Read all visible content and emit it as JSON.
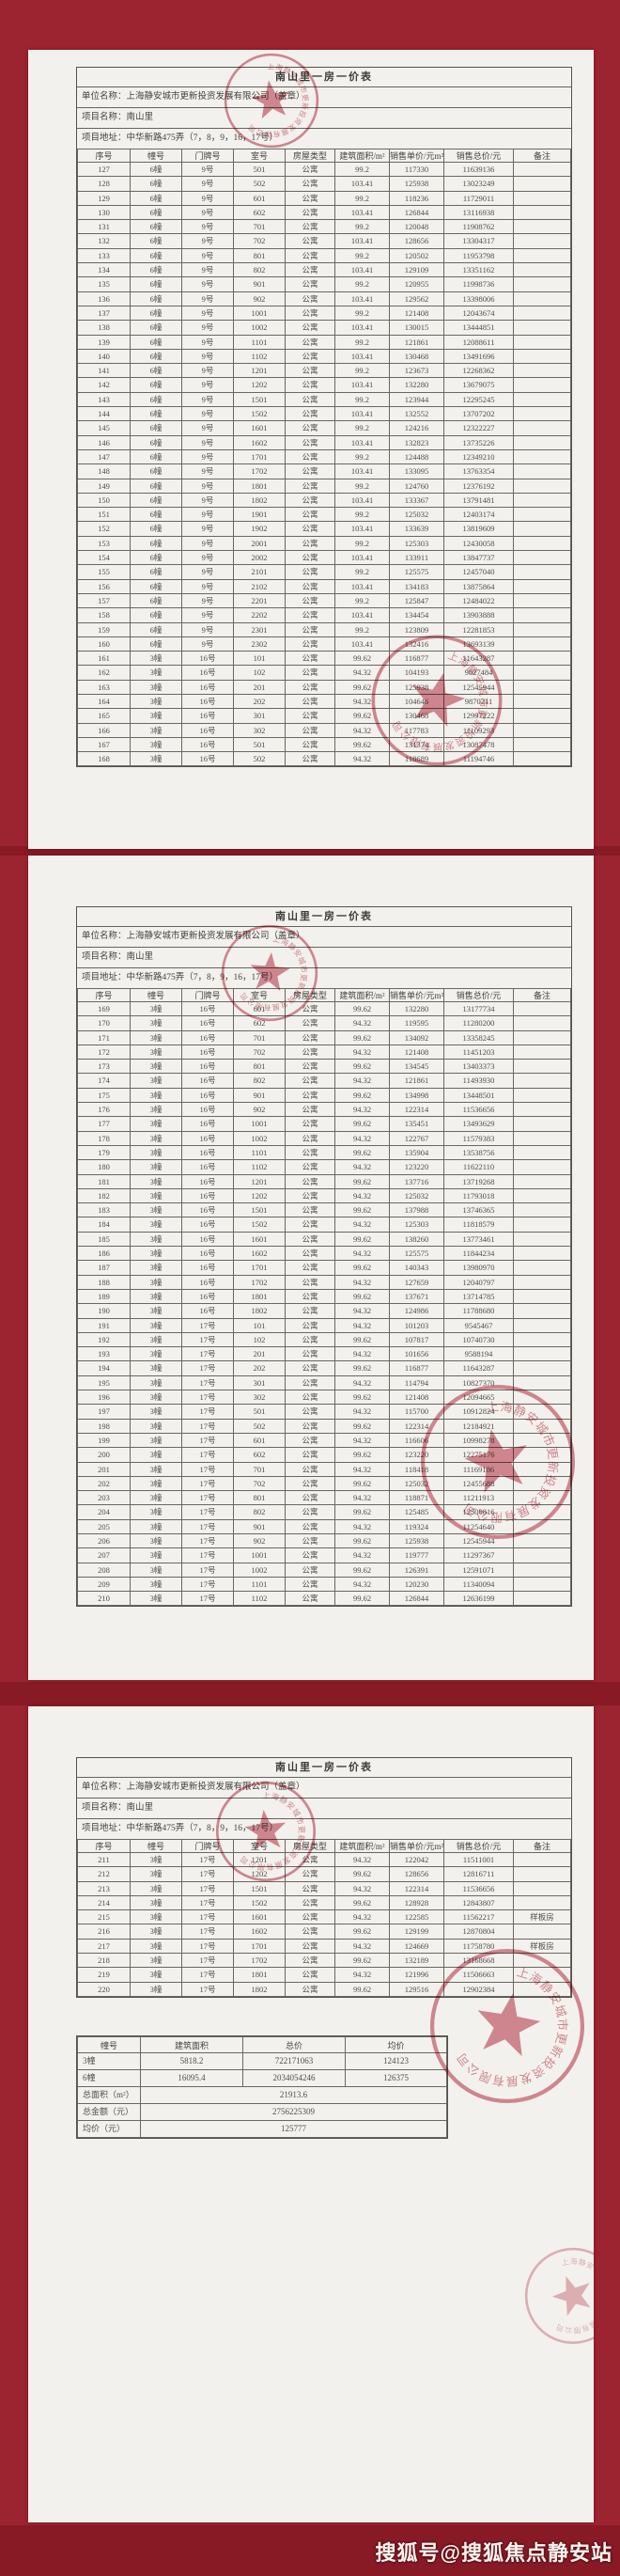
{
  "doc": {
    "title": "南山里一房一价表",
    "unit": "单位名称：上海静安城市更新投资发展有限公司（盖章）",
    "project": "项目名称：南山里",
    "address": "项目地址：中华新路475弄（7，8，9，16，17号）",
    "columns": [
      "序号",
      "幢号",
      "门牌号",
      "室号",
      "房屋类型",
      "建筑面积/m²",
      "销售单价/元m²",
      "销售总价/元",
      "备注"
    ]
  },
  "seal_text": "上海静安城市更新投资发展有限公司",
  "watermark": "搜狐号@搜狐焦点静安站",
  "colors": {
    "background": "#9c2430",
    "band": "#871a25",
    "paper": "#f3f1ed",
    "stamp_red": "#ba3046"
  },
  "pages": [
    {
      "rows": [
        [
          "127",
          "6幢",
          "9号",
          "501",
          "公寓",
          "99.2",
          "117330",
          "11639136",
          ""
        ],
        [
          "128",
          "6幢",
          "9号",
          "502",
          "公寓",
          "103.41",
          "125938",
          "13023249",
          ""
        ],
        [
          "129",
          "6幢",
          "9号",
          "601",
          "公寓",
          "99.2",
          "118236",
          "11729011",
          ""
        ],
        [
          "130",
          "6幢",
          "9号",
          "602",
          "公寓",
          "103.41",
          "126844",
          "13116938",
          ""
        ],
        [
          "131",
          "6幢",
          "9号",
          "701",
          "公寓",
          "99.2",
          "120048",
          "11908762",
          ""
        ],
        [
          "132",
          "6幢",
          "9号",
          "702",
          "公寓",
          "103.41",
          "128656",
          "13304317",
          ""
        ],
        [
          "133",
          "6幢",
          "9号",
          "801",
          "公寓",
          "99.2",
          "120502",
          "11953798",
          ""
        ],
        [
          "134",
          "6幢",
          "9号",
          "802",
          "公寓",
          "103.41",
          "129109",
          "13351162",
          ""
        ],
        [
          "135",
          "6幢",
          "9号",
          "901",
          "公寓",
          "99.2",
          "120955",
          "11998736",
          ""
        ],
        [
          "136",
          "6幢",
          "9号",
          "902",
          "公寓",
          "103.41",
          "129562",
          "13398006",
          ""
        ],
        [
          "137",
          "6幢",
          "9号",
          "1001",
          "公寓",
          "99.2",
          "121408",
          "12043674",
          ""
        ],
        [
          "138",
          "6幢",
          "9号",
          "1002",
          "公寓",
          "103.41",
          "130015",
          "13444851",
          ""
        ],
        [
          "139",
          "6幢",
          "9号",
          "1101",
          "公寓",
          "99.2",
          "121861",
          "12088611",
          ""
        ],
        [
          "140",
          "6幢",
          "9号",
          "1102",
          "公寓",
          "103.41",
          "130468",
          "13491696",
          ""
        ],
        [
          "141",
          "6幢",
          "9号",
          "1201",
          "公寓",
          "99.2",
          "123673",
          "12268362",
          ""
        ],
        [
          "142",
          "6幢",
          "9号",
          "1202",
          "公寓",
          "103.41",
          "132280",
          "13679075",
          ""
        ],
        [
          "143",
          "6幢",
          "9号",
          "1501",
          "公寓",
          "99.2",
          "123944",
          "12295245",
          ""
        ],
        [
          "144",
          "6幢",
          "9号",
          "1502",
          "公寓",
          "103.41",
          "132552",
          "13707202",
          ""
        ],
        [
          "145",
          "6幢",
          "9号",
          "1601",
          "公寓",
          "99.2",
          "124216",
          "12322227",
          ""
        ],
        [
          "146",
          "6幢",
          "9号",
          "1602",
          "公寓",
          "103.41",
          "132823",
          "13735226",
          ""
        ],
        [
          "147",
          "6幢",
          "9号",
          "1701",
          "公寓",
          "99.2",
          "124488",
          "12349210",
          ""
        ],
        [
          "148",
          "6幢",
          "9号",
          "1702",
          "公寓",
          "103.41",
          "133095",
          "13763354",
          ""
        ],
        [
          "149",
          "6幢",
          "9号",
          "1801",
          "公寓",
          "99.2",
          "124760",
          "12376192",
          ""
        ],
        [
          "150",
          "6幢",
          "9号",
          "1802",
          "公寓",
          "103.41",
          "133367",
          "13791481",
          ""
        ],
        [
          "151",
          "6幢",
          "9号",
          "1901",
          "公寓",
          "99.2",
          "125032",
          "12403174",
          ""
        ],
        [
          "152",
          "6幢",
          "9号",
          "1902",
          "公寓",
          "103.41",
          "133639",
          "13819609",
          ""
        ],
        [
          "153",
          "6幢",
          "9号",
          "2001",
          "公寓",
          "99.2",
          "125303",
          "12430058",
          ""
        ],
        [
          "154",
          "6幢",
          "9号",
          "2002",
          "公寓",
          "103.41",
          "133911",
          "13847737",
          ""
        ],
        [
          "155",
          "6幢",
          "9号",
          "2101",
          "公寓",
          "99.2",
          "125575",
          "12457040",
          ""
        ],
        [
          "156",
          "6幢",
          "9号",
          "2102",
          "公寓",
          "103.41",
          "134183",
          "13875864",
          ""
        ],
        [
          "157",
          "6幢",
          "9号",
          "2201",
          "公寓",
          "99.2",
          "125847",
          "12484022",
          ""
        ],
        [
          "158",
          "6幢",
          "9号",
          "2202",
          "公寓",
          "103.41",
          "134454",
          "13903888",
          ""
        ],
        [
          "159",
          "6幢",
          "9号",
          "2301",
          "公寓",
          "99.2",
          "123809",
          "12281853",
          ""
        ],
        [
          "160",
          "6幢",
          "9号",
          "2302",
          "公寓",
          "103.41",
          "132416",
          "13693139",
          ""
        ],
        [
          "161",
          "3幢",
          "16号",
          "101",
          "公寓",
          "99.62",
          "116877",
          "11643287",
          ""
        ],
        [
          "162",
          "3幢",
          "16号",
          "102",
          "公寓",
          "94.32",
          "104193",
          "9827484",
          ""
        ],
        [
          "163",
          "3幢",
          "16号",
          "201",
          "公寓",
          "99.62",
          "125938",
          "12545944",
          ""
        ],
        [
          "164",
          "3幢",
          "16号",
          "202",
          "公寓",
          "94.32",
          "104646",
          "9870211",
          ""
        ],
        [
          "165",
          "3幢",
          "16号",
          "301",
          "公寓",
          "99.62",
          "130468",
          "12997222",
          ""
        ],
        [
          "166",
          "3幢",
          "16号",
          "302",
          "公寓",
          "94.32",
          "117783",
          "11109293",
          ""
        ],
        [
          "167",
          "3幢",
          "16号",
          "501",
          "公寓",
          "99.62",
          "131374",
          "13087478",
          ""
        ],
        [
          "168",
          "3幢",
          "16号",
          "502",
          "公寓",
          "94.32",
          "118689",
          "11194746",
          ""
        ]
      ]
    },
    {
      "rows": [
        [
          "169",
          "3幢",
          "16号",
          "601",
          "公寓",
          "99.62",
          "132280",
          "13177734",
          ""
        ],
        [
          "170",
          "3幢",
          "16号",
          "602",
          "公寓",
          "94.32",
          "119595",
          "11280200",
          ""
        ],
        [
          "171",
          "3幢",
          "16号",
          "701",
          "公寓",
          "99.62",
          "134092",
          "13358245",
          ""
        ],
        [
          "172",
          "3幢",
          "16号",
          "702",
          "公寓",
          "94.32",
          "121408",
          "11451203",
          ""
        ],
        [
          "173",
          "3幢",
          "16号",
          "801",
          "公寓",
          "99.62",
          "134545",
          "13403373",
          ""
        ],
        [
          "174",
          "3幢",
          "16号",
          "802",
          "公寓",
          "94.32",
          "121861",
          "11493930",
          ""
        ],
        [
          "175",
          "3幢",
          "16号",
          "901",
          "公寓",
          "99.62",
          "134998",
          "13448501",
          ""
        ],
        [
          "176",
          "3幢",
          "16号",
          "902",
          "公寓",
          "94.32",
          "122314",
          "11536656",
          ""
        ],
        [
          "177",
          "3幢",
          "16号",
          "1001",
          "公寓",
          "99.62",
          "135451",
          "13493629",
          ""
        ],
        [
          "178",
          "3幢",
          "16号",
          "1002",
          "公寓",
          "94.32",
          "122767",
          "11579383",
          ""
        ],
        [
          "179",
          "3幢",
          "16号",
          "1101",
          "公寓",
          "99.62",
          "135904",
          "13538756",
          ""
        ],
        [
          "180",
          "3幢",
          "16号",
          "1102",
          "公寓",
          "94.32",
          "123220",
          "11622110",
          ""
        ],
        [
          "181",
          "3幢",
          "16号",
          "1201",
          "公寓",
          "99.62",
          "137716",
          "13719268",
          ""
        ],
        [
          "182",
          "3幢",
          "16号",
          "1202",
          "公寓",
          "94.32",
          "125032",
          "11793018",
          ""
        ],
        [
          "183",
          "3幢",
          "16号",
          "1501",
          "公寓",
          "99.62",
          "137988",
          "13746365",
          ""
        ],
        [
          "184",
          "3幢",
          "16号",
          "1502",
          "公寓",
          "94.32",
          "125303",
          "11818579",
          ""
        ],
        [
          "185",
          "3幢",
          "16号",
          "1601",
          "公寓",
          "99.62",
          "138260",
          "13773461",
          ""
        ],
        [
          "186",
          "3幢",
          "16号",
          "1602",
          "公寓",
          "94.32",
          "125575",
          "11844234",
          ""
        ],
        [
          "187",
          "3幢",
          "16号",
          "1701",
          "公寓",
          "99.62",
          "140343",
          "13980970",
          ""
        ],
        [
          "188",
          "3幢",
          "16号",
          "1702",
          "公寓",
          "94.32",
          "127659",
          "12040797",
          ""
        ],
        [
          "189",
          "3幢",
          "16号",
          "1801",
          "公寓",
          "99.62",
          "137671",
          "13714785",
          ""
        ],
        [
          "190",
          "3幢",
          "16号",
          "1802",
          "公寓",
          "94.32",
          "124986",
          "11788680",
          ""
        ],
        [
          "191",
          "3幢",
          "17号",
          "101",
          "公寓",
          "94.32",
          "101203",
          "9545467",
          ""
        ],
        [
          "192",
          "3幢",
          "17号",
          "102",
          "公寓",
          "99.62",
          "107817",
          "10740730",
          ""
        ],
        [
          "193",
          "3幢",
          "17号",
          "201",
          "公寓",
          "94.32",
          "101656",
          "9588194",
          ""
        ],
        [
          "194",
          "3幢",
          "17号",
          "202",
          "公寓",
          "99.62",
          "116877",
          "11643287",
          ""
        ],
        [
          "195",
          "3幢",
          "17号",
          "301",
          "公寓",
          "94.32",
          "114794",
          "10827370",
          ""
        ],
        [
          "196",
          "3幢",
          "17号",
          "302",
          "公寓",
          "99.62",
          "121408",
          "12094665",
          ""
        ],
        [
          "197",
          "3幢",
          "17号",
          "501",
          "公寓",
          "94.32",
          "115700",
          "10912824",
          ""
        ],
        [
          "198",
          "3幢",
          "17号",
          "502",
          "公寓",
          "99.62",
          "122314",
          "12184921",
          ""
        ],
        [
          "199",
          "3幢",
          "17号",
          "601",
          "公寓",
          "94.32",
          "116606",
          "10998278",
          ""
        ],
        [
          "200",
          "3幢",
          "17号",
          "602",
          "公寓",
          "99.62",
          "123220",
          "12275176",
          ""
        ],
        [
          "201",
          "3幢",
          "17号",
          "701",
          "公寓",
          "94.32",
          "118418",
          "11169186",
          ""
        ],
        [
          "202",
          "3幢",
          "17号",
          "702",
          "公寓",
          "99.62",
          "125032",
          "12455688",
          ""
        ],
        [
          "203",
          "3幢",
          "17号",
          "801",
          "公寓",
          "94.32",
          "118871",
          "11211913",
          ""
        ],
        [
          "204",
          "3幢",
          "17号",
          "802",
          "公寓",
          "99.62",
          "125485",
          "12500816",
          ""
        ],
        [
          "205",
          "3幢",
          "17号",
          "901",
          "公寓",
          "94.32",
          "119324",
          "11254640",
          ""
        ],
        [
          "206",
          "3幢",
          "17号",
          "902",
          "公寓",
          "99.62",
          "125938",
          "12545944",
          ""
        ],
        [
          "207",
          "3幢",
          "17号",
          "1001",
          "公寓",
          "94.32",
          "119777",
          "11297367",
          ""
        ],
        [
          "208",
          "3幢",
          "17号",
          "1002",
          "公寓",
          "99.62",
          "126391",
          "12591071",
          ""
        ],
        [
          "209",
          "3幢",
          "17号",
          "1101",
          "公寓",
          "94.32",
          "120230",
          "11340094",
          ""
        ],
        [
          "210",
          "3幢",
          "17号",
          "1102",
          "公寓",
          "99.62",
          "126844",
          "12636199",
          ""
        ]
      ]
    },
    {
      "rows": [
        [
          "211",
          "3幢",
          "17号",
          "1201",
          "公寓",
          "94.32",
          "122042",
          "11511001",
          ""
        ],
        [
          "212",
          "3幢",
          "17号",
          "1202",
          "公寓",
          "99.62",
          "128656",
          "12816711",
          ""
        ],
        [
          "213",
          "3幢",
          "17号",
          "1501",
          "公寓",
          "94.32",
          "122314",
          "11536656",
          ""
        ],
        [
          "214",
          "3幢",
          "17号",
          "1502",
          "公寓",
          "99.62",
          "128928",
          "12843807",
          ""
        ],
        [
          "215",
          "3幢",
          "17号",
          "1601",
          "公寓",
          "94.32",
          "122585",
          "11562217",
          "样板房"
        ],
        [
          "216",
          "3幢",
          "17号",
          "1602",
          "公寓",
          "99.62",
          "129199",
          "12870804",
          ""
        ],
        [
          "217",
          "3幢",
          "17号",
          "1701",
          "公寓",
          "94.32",
          "124669",
          "11758780",
          "样板房"
        ],
        [
          "218",
          "3幢",
          "17号",
          "1702",
          "公寓",
          "99.62",
          "132189",
          "13168668",
          ""
        ],
        [
          "219",
          "3幢",
          "17号",
          "1801",
          "公寓",
          "94.32",
          "121996",
          "11506663",
          ""
        ],
        [
          "220",
          "3幢",
          "17号",
          "1802",
          "公寓",
          "99.62",
          "129516",
          "12902384",
          ""
        ]
      ]
    }
  ],
  "summary": {
    "columns": [
      "幢号",
      "建筑面积",
      "总价",
      "均价"
    ],
    "rows": [
      [
        "3幢",
        "5818.2",
        "722171063",
        "124123"
      ],
      [
        "6幢",
        "16095.4",
        "2034054246",
        "126375"
      ],
      [
        "总面积（m²）",
        "21913.6"
      ],
      [
        "总金额（元）",
        "2756225309"
      ],
      [
        "均价（元）",
        "125777"
      ]
    ]
  }
}
